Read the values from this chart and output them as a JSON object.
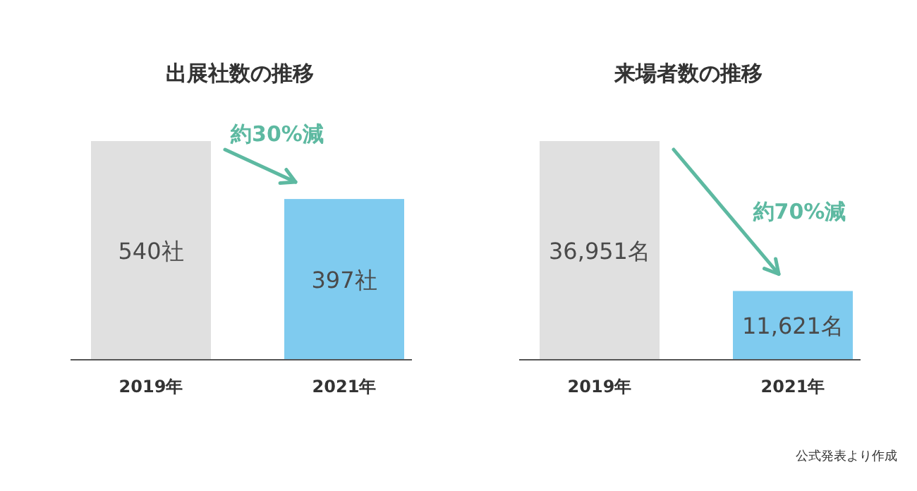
{
  "chart_data": [
    {
      "type": "bar",
      "title": "出展社数の推移",
      "categories": [
        "2019年",
        "2021年"
      ],
      "values": [
        540,
        397
      ],
      "value_labels": [
        "540社",
        "397社"
      ],
      "colors": [
        "#e0e0e0",
        "#7fcbef"
      ],
      "annotations": [
        "約30%減"
      ]
    },
    {
      "type": "bar",
      "title": "来場者数の推移",
      "categories": [
        "2019年",
        "2021年"
      ],
      "values": [
        36951,
        11621
      ],
      "value_labels": [
        "36,951名",
        "11,621名"
      ],
      "colors": [
        "#e0e0e0",
        "#7fcbef"
      ],
      "annotations": [
        "約70%減",
        "公式発表より作成"
      ]
    }
  ]
}
